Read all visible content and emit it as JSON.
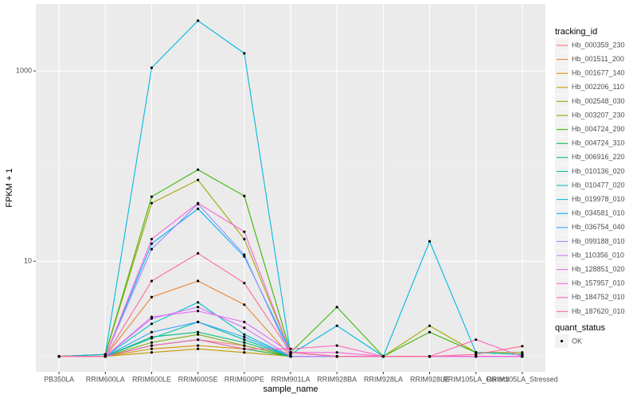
{
  "chart_data": {
    "type": "line",
    "x_label": "sample_name",
    "y_label": "FPKM + 1",
    "log_y": true,
    "grid": true,
    "categories": [
      "PB350LA",
      "RRIM600LA",
      "RRIM600LE",
      "RRIM600SE",
      "RRIM600PE",
      "RRIM901LA",
      "RRIM928BA",
      "RRIM928LA",
      "RRIM928LE",
      "RRIM105LA_Control",
      "RRIM105LA_Stressed"
    ],
    "ylim": [
      0.69,
      5050
    ],
    "yticks": [
      10,
      1000
    ],
    "y_minor_ticks": [
      1,
      100
    ],
    "legend_title": "tracking_id",
    "point_legend_title": "quant_status",
    "point_legend_label": "OK",
    "point_color": "#000000",
    "series": [
      {
        "name": "Hb_000359_230",
        "color": "#F8766D",
        "values": [
          1,
          1,
          1.3,
          1.5,
          1.3,
          1,
          1,
          1,
          1,
          1,
          1
        ]
      },
      {
        "name": "Hb_001511_200",
        "color": "#EA8331",
        "values": [
          1,
          1,
          4.2,
          6.2,
          3.5,
          1,
          1,
          1,
          1,
          1,
          1
        ]
      },
      {
        "name": "Hb_001677_140",
        "color": "#D89000",
        "values": [
          1,
          1,
          1.2,
          1.3,
          1.2,
          1,
          1,
          1,
          1,
          1,
          1
        ]
      },
      {
        "name": "Hb_002206_110",
        "color": "#C09B00",
        "values": [
          1,
          1,
          1.1,
          1.2,
          1.1,
          1,
          1,
          1,
          1,
          1,
          1
        ]
      },
      {
        "name": "Hb_002548_030",
        "color": "#A3A500",
        "values": [
          1,
          1.05,
          40.8,
          71.5,
          17.1,
          1.1,
          1,
          1,
          2.1,
          1.1,
          1.1
        ]
      },
      {
        "name": "Hb_003207_230",
        "color": "#7CAE00",
        "values": [
          1,
          1,
          1.4,
          1.7,
          1.3,
          1,
          1,
          1,
          1,
          1,
          1
        ]
      },
      {
        "name": "Hb_004724_290",
        "color": "#39B600",
        "values": [
          1,
          1.05,
          47.7,
          91.6,
          48.5,
          1.1,
          3.3,
          1,
          1.8,
          1.1,
          1.05
        ]
      },
      {
        "name": "Hb_004724_310",
        "color": "#00BB4E",
        "values": [
          1,
          1,
          1.3,
          1.5,
          1.2,
          1,
          1,
          1,
          1,
          1,
          1
        ]
      },
      {
        "name": "Hb_006916_220",
        "color": "#00BF7D",
        "values": [
          1,
          1,
          1.6,
          1.8,
          1.4,
          1,
          1,
          1,
          1,
          1,
          1
        ]
      },
      {
        "name": "Hb_010136_020",
        "color": "#00C1A3",
        "values": [
          1,
          1,
          1.55,
          2.3,
          1.5,
          1,
          1,
          1,
          1,
          1,
          1
        ]
      },
      {
        "name": "Hb_010477_020",
        "color": "#00BFC4",
        "values": [
          1,
          1,
          2.2,
          3.7,
          1.7,
          1,
          1,
          1,
          1,
          1,
          1
        ]
      },
      {
        "name": "Hb_019978_010",
        "color": "#00BAE0",
        "values": [
          1,
          1.05,
          1080,
          3370,
          1530,
          1.05,
          2.1,
          1,
          16.2,
          1.1,
          1.05
        ]
      },
      {
        "name": "Hb_034581_010",
        "color": "#00B0F6",
        "values": [
          1,
          1,
          15.3,
          35.6,
          11.2,
          1.1,
          1,
          1,
          1,
          1,
          1
        ]
      },
      {
        "name": "Hb_036754_040",
        "color": "#35A2FF",
        "values": [
          1,
          1,
          1.8,
          2.3,
          1.6,
          1,
          1,
          1,
          1,
          1,
          1
        ]
      },
      {
        "name": "Hb_099188_010",
        "color": "#9590FF",
        "values": [
          1,
          1,
          13.4,
          40,
          11.7,
          1,
          1,
          1,
          1,
          1,
          1
        ]
      },
      {
        "name": "Hb_110356_010",
        "color": "#C77CFF",
        "values": [
          1,
          1,
          2.5,
          3.3,
          2,
          1,
          1,
          1,
          1,
          1,
          1
        ]
      },
      {
        "name": "Hb_128851_020",
        "color": "#E76BF3",
        "values": [
          1,
          1,
          2.6,
          3,
          2.3,
          1.1,
          1,
          1,
          1,
          1,
          1
        ]
      },
      {
        "name": "Hb_157957_010",
        "color": "#FA62DB",
        "values": [
          1,
          1,
          17.1,
          40.8,
          20.4,
          1.1,
          1.1,
          1,
          1,
          1,
          1
        ]
      },
      {
        "name": "Hb_184752_010",
        "color": "#FF62BC",
        "values": [
          1,
          1,
          1.3,
          1.5,
          1.2,
          1.2,
          1.3,
          1,
          1,
          1.5,
          1
        ]
      },
      {
        "name": "Hb_187620_010",
        "color": "#FF6C91",
        "values": [
          1,
          1,
          6.2,
          12.1,
          5.9,
          1.1,
          1,
          1,
          1,
          1.05,
          1.28
        ]
      }
    ]
  }
}
